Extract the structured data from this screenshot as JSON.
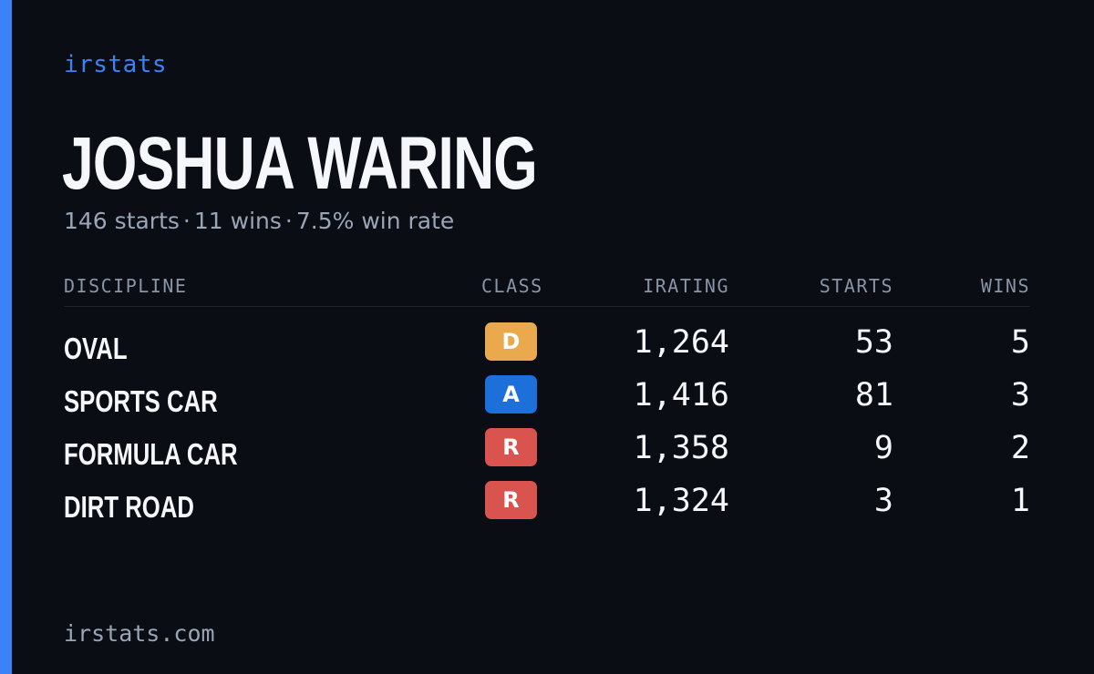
{
  "brand": "irstats",
  "driver": {
    "name": "JOSHUA WARING"
  },
  "summary": {
    "starts": "146 starts",
    "wins": "11 wins",
    "win_rate": "7.5% win rate",
    "separator": "·"
  },
  "table": {
    "headers": {
      "discipline": "DISCIPLINE",
      "class": "CLASS",
      "irating": "IRATING",
      "starts": "STARTS",
      "wins": "WINS"
    },
    "rows": [
      {
        "discipline": "OVAL",
        "class": "D",
        "class_color": "#e9a94c",
        "irating": "1,264",
        "starts": "53",
        "wins": "5"
      },
      {
        "discipline": "SPORTS CAR",
        "class": "A",
        "class_color": "#1d6fd9",
        "irating": "1,416",
        "starts": "81",
        "wins": "3"
      },
      {
        "discipline": "FORMULA CAR",
        "class": "R",
        "class_color": "#d9534f",
        "irating": "1,358",
        "starts": "9",
        "wins": "2"
      },
      {
        "discipline": "DIRT ROAD",
        "class": "R",
        "class_color": "#d9534f",
        "irating": "1,324",
        "starts": "3",
        "wins": "1"
      }
    ]
  },
  "footer": "irstats.com",
  "colors": {
    "background": "#0a0d14",
    "accent": "#3b82f6",
    "text_primary": "#f5f7fb",
    "text_muted": "#9ba5b6"
  }
}
